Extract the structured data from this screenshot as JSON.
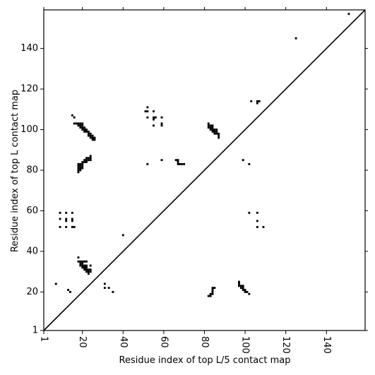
{
  "chart_data": {
    "type": "scatter",
    "title": "",
    "xlabel": "Residue index of top L/5 contact map",
    "ylabel": "Residue index of top L contact map",
    "xlim": [
      1,
      159
    ],
    "ylim": [
      1,
      159
    ],
    "xticks": [
      1,
      20,
      40,
      60,
      80,
      100,
      120,
      140
    ],
    "yticks": [
      1,
      20,
      40,
      60,
      80,
      100,
      120,
      140
    ],
    "xtick_rotation_deg": -90,
    "grid": false,
    "legend": "none",
    "marker_color": "#000000",
    "diagonal": {
      "from": [
        1,
        1
      ],
      "to": [
        159,
        159
      ],
      "color": "#000000"
    },
    "series": [
      {
        "values_upper_left": [
          [
            7,
            24
          ],
          [
            9,
            52
          ],
          [
            9,
            56
          ],
          [
            9,
            59
          ],
          [
            12,
            52
          ],
          [
            12,
            55
          ],
          [
            12,
            56
          ],
          [
            12,
            59
          ],
          [
            15,
            52
          ],
          [
            16,
            52
          ],
          [
            15,
            55
          ],
          [
            15,
            56
          ],
          [
            15,
            59
          ],
          [
            13,
            21
          ],
          [
            14,
            20
          ],
          [
            15,
            107
          ],
          [
            16,
            106
          ],
          [
            16,
            103
          ],
          [
            17,
            103
          ],
          [
            18,
            103
          ],
          [
            19,
            103
          ],
          [
            20,
            103
          ],
          [
            18,
            102
          ],
          [
            19,
            102
          ],
          [
            20,
            102
          ],
          [
            19,
            101
          ],
          [
            20,
            101
          ],
          [
            21,
            101
          ],
          [
            20,
            100
          ],
          [
            21,
            100
          ],
          [
            22,
            100
          ],
          [
            21,
            99
          ],
          [
            22,
            99
          ],
          [
            23,
            99
          ],
          [
            23,
            98
          ],
          [
            24,
            98
          ],
          [
            23,
            97
          ],
          [
            24,
            97
          ],
          [
            25,
            97
          ],
          [
            24,
            96
          ],
          [
            25,
            96
          ],
          [
            26,
            96
          ],
          [
            25,
            95
          ],
          [
            26,
            95
          ],
          [
            18,
            83
          ],
          [
            19,
            83
          ],
          [
            20,
            83
          ],
          [
            18,
            82
          ],
          [
            19,
            82
          ],
          [
            20,
            82
          ],
          [
            18,
            81
          ],
          [
            19,
            81
          ],
          [
            20,
            81
          ],
          [
            18,
            80
          ],
          [
            19,
            80
          ],
          [
            18,
            79
          ],
          [
            20,
            84
          ],
          [
            21,
            84
          ],
          [
            22,
            84
          ],
          [
            21,
            85
          ],
          [
            22,
            85
          ],
          [
            23,
            85
          ],
          [
            24,
            85
          ],
          [
            22,
            86
          ],
          [
            23,
            86
          ],
          [
            24,
            86
          ],
          [
            24,
            87
          ],
          [
            18,
            37
          ],
          [
            18,
            35
          ],
          [
            19,
            35
          ],
          [
            20,
            35
          ],
          [
            21,
            35
          ],
          [
            22,
            35
          ],
          [
            19,
            34
          ],
          [
            20,
            34
          ],
          [
            19,
            33
          ],
          [
            20,
            33
          ],
          [
            21,
            33
          ],
          [
            22,
            33
          ],
          [
            20,
            32
          ],
          [
            21,
            32
          ],
          [
            22,
            32
          ],
          [
            21,
            31
          ],
          [
            22,
            31
          ],
          [
            23,
            31
          ],
          [
            24,
            31
          ],
          [
            22,
            30
          ],
          [
            23,
            30
          ],
          [
            24,
            30
          ],
          [
            23,
            29
          ],
          [
            24,
            33
          ],
          [
            31,
            24
          ],
          [
            31,
            22
          ],
          [
            33,
            22
          ],
          [
            35,
            20
          ],
          [
            40,
            48
          ],
          [
            51,
            109
          ],
          [
            52,
            109
          ],
          [
            52,
            111
          ],
          [
            52,
            106
          ],
          [
            55,
            109
          ],
          [
            55,
            106
          ],
          [
            56,
            106
          ],
          [
            55,
            105
          ],
          [
            55,
            102
          ],
          [
            59,
            106
          ],
          [
            59,
            103
          ],
          [
            59,
            102
          ],
          [
            52,
            83
          ],
          [
            59,
            85
          ],
          [
            66,
            85
          ],
          [
            67,
            85
          ],
          [
            67,
            84
          ],
          [
            67,
            83
          ],
          [
            68,
            83
          ],
          [
            69,
            83
          ],
          [
            70,
            83
          ]
        ]
      },
      {
        "values_lower_right": [
          [
            82,
            103
          ],
          [
            82,
            102
          ],
          [
            83,
            102
          ],
          [
            84,
            102
          ],
          [
            82,
            101
          ],
          [
            83,
            101
          ],
          [
            84,
            101
          ],
          [
            83,
            100
          ],
          [
            84,
            100
          ],
          [
            85,
            100
          ],
          [
            86,
            100
          ],
          [
            84,
            99
          ],
          [
            85,
            99
          ],
          [
            86,
            99
          ],
          [
            85,
            98
          ],
          [
            86,
            98
          ],
          [
            87,
            98
          ],
          [
            87,
            97
          ],
          [
            87,
            96
          ],
          [
            82,
            18
          ],
          [
            83,
            18
          ],
          [
            83,
            19
          ],
          [
            84,
            19
          ],
          [
            84,
            20
          ],
          [
            84,
            21
          ],
          [
            84,
            22
          ],
          [
            85,
            22
          ],
          [
            97,
            25
          ],
          [
            97,
            24
          ],
          [
            97,
            23
          ],
          [
            98,
            23
          ],
          [
            99,
            23
          ],
          [
            98,
            22
          ],
          [
            99,
            22
          ],
          [
            99,
            21
          ],
          [
            100,
            21
          ],
          [
            100,
            20
          ],
          [
            101,
            20
          ],
          [
            102,
            19
          ],
          [
            99,
            85
          ],
          [
            102,
            83
          ],
          [
            102,
            59
          ],
          [
            103,
            114
          ],
          [
            106,
            59
          ],
          [
            106,
            55
          ],
          [
            106,
            52
          ],
          [
            106,
            113
          ],
          [
            106,
            114
          ],
          [
            107,
            114
          ],
          [
            109,
            52
          ],
          [
            125,
            145
          ],
          [
            151,
            157
          ]
        ]
      }
    ]
  }
}
